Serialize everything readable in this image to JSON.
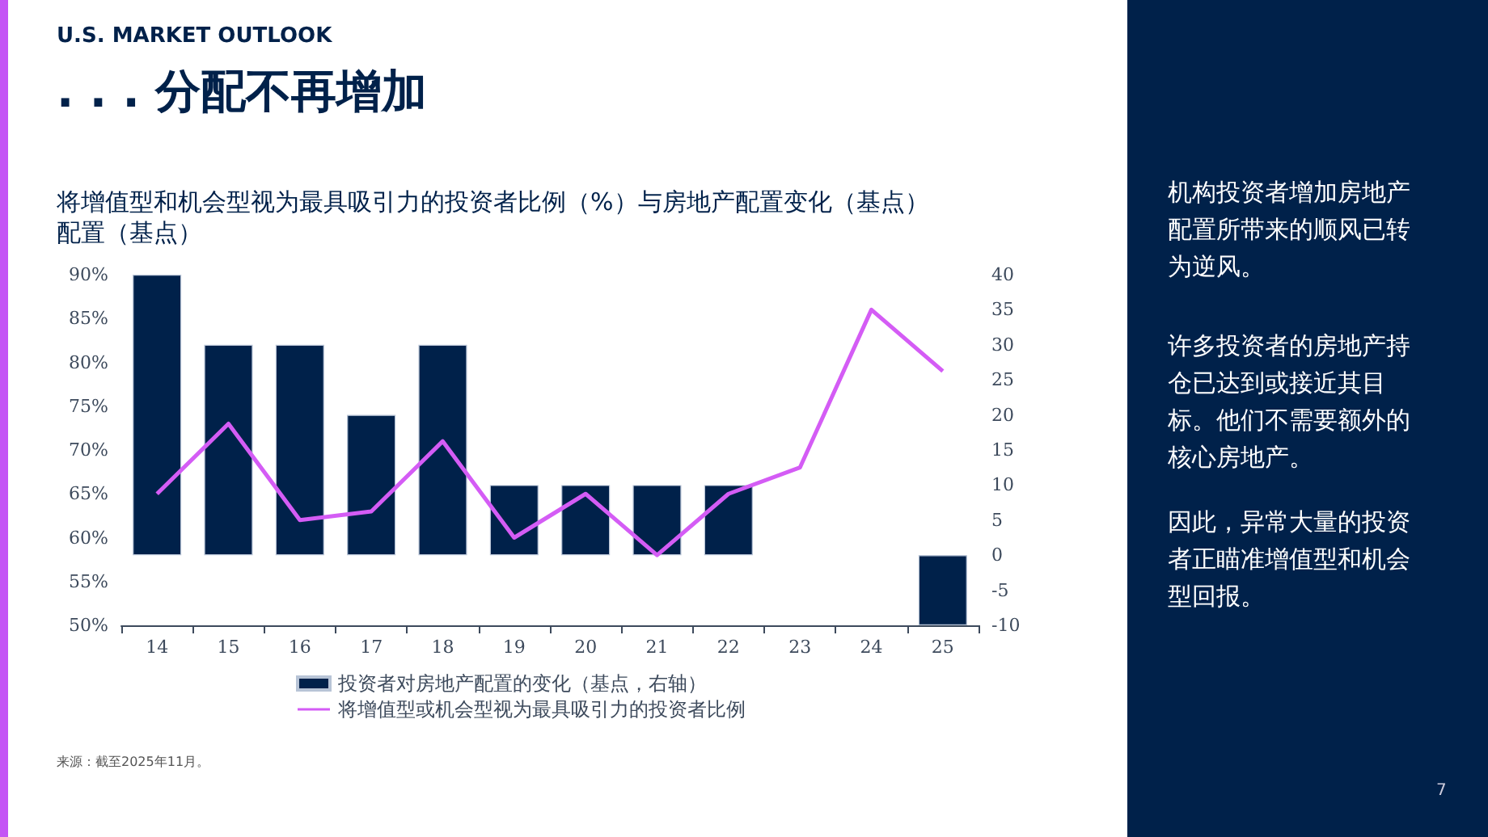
{
  "chart_data": {
    "type": "bar",
    "title": ". . . 分配不再增加",
    "subtitle": "将增值型和机会型视为最具吸引力的投资者比例（%）与房地产配置变化（基点）配置（基点）",
    "annotations": [
      "U.S. MARKET OUTLOOK",
      "机构投资者增加房地产配置所带来的顺风已转为逆风。",
      "许多投资者的房地产持仓已达到或接近其目标。他们不需要额外的核心房地产。",
      "因此，异常大量的投资者正瞄准增值型和机会型回报。",
      "来源：截至2025年11月。",
      "7"
    ],
    "categories": [
      "14",
      "15",
      "16",
      "17",
      "18",
      "19",
      "20",
      "21",
      "22",
      "23",
      "24",
      "25"
    ],
    "series": [
      {
        "name": "投资者对房地产配置的变化（基点，右轴）",
        "axis": "y2",
        "color": "#00214a",
        "values": [
          40,
          30,
          30,
          20,
          30,
          10,
          10,
          10,
          10,
          null,
          null,
          -10
        ]
      },
      {
        "name": "将增值型或机会型视为最具吸引力的投资者比例",
        "type": "line",
        "color": "#d45cf5",
        "values": [
          65,
          73,
          62,
          63,
          71,
          60,
          65,
          58,
          65,
          68,
          86,
          79
        ]
      }
    ],
    "ylim": [
      50,
      90
    ],
    "yticks": [
      {
        "value": 50,
        "label": "50%"
      },
      {
        "value": 55,
        "label": "55%"
      },
      {
        "value": 60,
        "label": "60%"
      },
      {
        "value": 65,
        "label": "65%"
      },
      {
        "value": 70,
        "label": "70%"
      },
      {
        "value": 75,
        "label": "75%"
      },
      {
        "value": 80,
        "label": "80%"
      },
      {
        "value": 85,
        "label": "85%"
      },
      {
        "value": 90,
        "label": "90%"
      }
    ],
    "y2lim": [
      -10,
      40
    ],
    "y2ticks": [
      -10,
      -5,
      0,
      5,
      10,
      15,
      20,
      25,
      30,
      35,
      40
    ],
    "grid": false,
    "legend": "bottom",
    "marker": "none",
    "line_style": "solid"
  }
}
